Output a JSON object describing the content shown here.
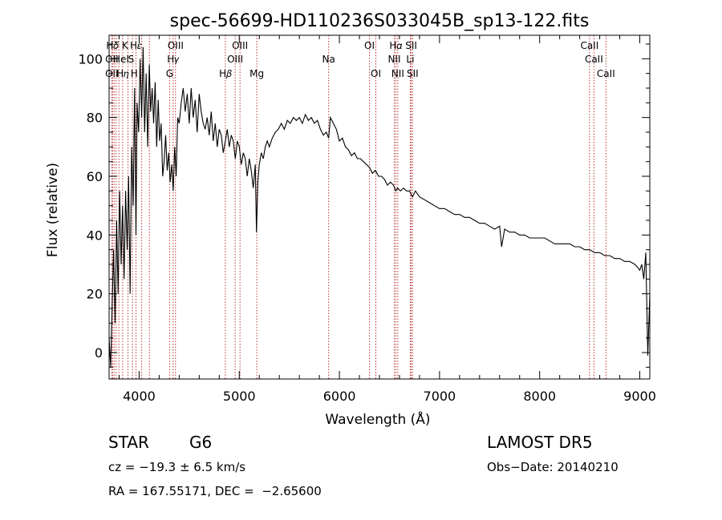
{
  "chart_data": {
    "type": "line",
    "title": "spec-56699-HD110236S033045B_sp13-122.fits",
    "xlabel": "Wavelength (Å)",
    "ylabel": "Flux (relative)",
    "xlim": [
      3700,
      9100
    ],
    "ylim": [
      -9,
      108
    ],
    "xticks": [
      "4000",
      "5000",
      "6000",
      "7000",
      "8000",
      "9000"
    ],
    "yticks": [
      "0",
      "20",
      "40",
      "60",
      "80",
      "100"
    ],
    "grid": false,
    "series": [
      {
        "x": [
          3700,
          3715,
          3730,
          3745,
          3760,
          3775,
          3790,
          3805,
          3820,
          3835,
          3850,
          3865,
          3880,
          3895,
          3910,
          3925,
          3940,
          3955,
          3968,
          3980,
          3995,
          4010,
          4025,
          4040,
          4055,
          4070,
          4085,
          4101,
          4115,
          4130,
          4145,
          4160,
          4175,
          4190,
          4205,
          4220,
          4235,
          4250,
          4265,
          4280,
          4295,
          4310,
          4325,
          4340,
          4355,
          4370,
          4385,
          4400,
          4420,
          4440,
          4460,
          4480,
          4500,
          4520,
          4540,
          4560,
          4580,
          4600,
          4620,
          4640,
          4660,
          4680,
          4700,
          4720,
          4740,
          4760,
          4780,
          4800,
          4820,
          4840,
          4861,
          4880,
          4900,
          4920,
          4940,
          4960,
          4980,
          5000,
          5020,
          5040,
          5060,
          5080,
          5100,
          5120,
          5140,
          5160,
          5172,
          5185,
          5200,
          5220,
          5240,
          5260,
          5280,
          5300,
          5330,
          5360,
          5390,
          5420,
          5450,
          5480,
          5510,
          5540,
          5570,
          5600,
          5630,
          5660,
          5690,
          5720,
          5750,
          5780,
          5810,
          5840,
          5870,
          5893,
          5910,
          5940,
          5970,
          6000,
          6030,
          6060,
          6090,
          6120,
          6150,
          6180,
          6210,
          6240,
          6270,
          6300,
          6330,
          6360,
          6390,
          6420,
          6450,
          6480,
          6510,
          6540,
          6563,
          6580,
          6610,
          6640,
          6670,
          6700,
          6730,
          6760,
          6800,
          6850,
          6900,
          6950,
          7000,
          7050,
          7100,
          7150,
          7200,
          7250,
          7300,
          7350,
          7400,
          7450,
          7500,
          7550,
          7600,
          7620,
          7650,
          7700,
          7750,
          7800,
          7850,
          7900,
          7950,
          8000,
          8050,
          8100,
          8150,
          8200,
          8250,
          8300,
          8350,
          8400,
          8450,
          8500,
          8550,
          8600,
          8650,
          8700,
          8750,
          8800,
          8850,
          8900,
          8950,
          8980,
          9000,
          9020,
          9040,
          9060,
          9080,
          9100
        ],
        "y": [
          5,
          -5,
          15,
          35,
          10,
          45,
          20,
          55,
          30,
          50,
          25,
          55,
          35,
          60,
          20,
          70,
          50,
          90,
          40,
          85,
          75,
          100,
          80,
          104,
          75,
          95,
          70,
          98,
          82,
          90,
          78,
          92,
          70,
          86,
          72,
          78,
          60,
          65,
          74,
          62,
          68,
          58,
          64,
          55,
          70,
          60,
          80,
          78,
          85,
          90,
          82,
          88,
          78,
          90,
          80,
          86,
          75,
          88,
          82,
          78,
          76,
          80,
          74,
          82,
          72,
          78,
          70,
          76,
          74,
          68,
          72,
          76,
          70,
          74,
          72,
          66,
          72,
          70,
          64,
          68,
          66,
          60,
          66,
          62,
          56,
          64,
          41,
          58,
          64,
          68,
          66,
          70,
          72,
          70,
          73,
          75,
          76,
          78,
          76,
          79,
          78,
          80,
          79,
          80,
          78,
          81,
          79,
          80,
          78,
          79,
          76,
          74,
          75,
          73,
          80,
          78,
          76,
          72,
          73,
          70,
          69,
          67,
          68,
          66,
          66,
          65,
          64,
          63,
          61,
          62,
          60,
          60,
          59,
          57,
          58,
          57,
          55,
          56,
          55,
          56,
          55,
          55,
          53,
          55,
          53,
          52,
          51,
          50,
          49,
          49,
          48,
          47,
          47,
          46,
          46,
          45,
          44,
          44,
          43,
          42,
          43,
          36,
          42,
          41,
          41,
          40,
          40,
          39,
          39,
          39,
          39,
          38,
          37,
          37,
          37,
          37,
          36,
          36,
          35,
          35,
          34,
          34,
          33,
          33,
          32,
          32,
          31,
          31,
          30,
          29,
          28,
          30,
          25,
          34,
          -1,
          20
        ]
      }
    ],
    "annotations": [
      {
        "label": "H𝛿",
        "row": 1,
        "x": 3734
      },
      {
        "label": "K",
        "row": 1,
        "x": 3860
      },
      {
        "label": "H𝜀",
        "row": 1,
        "x": 3968
      },
      {
        "label": "OIII",
        "row": 1,
        "x": 4364
      },
      {
        "label": "OIII",
        "row": 1,
        "x": 5007
      },
      {
        "label": "OI",
        "row": 1,
        "x": 6300
      },
      {
        "label": "H𝛼",
        "row": 1,
        "x": 6563
      },
      {
        "label": "SII",
        "row": 1,
        "x": 6717
      },
      {
        "label": "CaII",
        "row": 1,
        "x": 8498
      },
      {
        "label": "OII",
        "row": 2,
        "x": 3727
      },
      {
        "label": "HeI",
        "row": 2,
        "x": 3820
      },
      {
        "label": "S",
        "row": 2,
        "x": 3920
      },
      {
        "label": "H𝛾",
        "row": 2,
        "x": 4340
      },
      {
        "label": "OIII",
        "row": 2,
        "x": 4959
      },
      {
        "label": "Na",
        "row": 2,
        "x": 5893
      },
      {
        "label": "NII",
        "row": 2,
        "x": 6548
      },
      {
        "label": "Li",
        "row": 2,
        "x": 6708
      },
      {
        "label": "CaII",
        "row": 2,
        "x": 8542
      },
      {
        "label": "OII",
        "row": 3,
        "x": 3727
      },
      {
        "label": "H𝜂",
        "row": 3,
        "x": 3835
      },
      {
        "label": "H",
        "row": 3,
        "x": 3950
      },
      {
        "label": "G",
        "row": 3,
        "x": 4304
      },
      {
        "label": "H𝛽",
        "row": 3,
        "x": 4861
      },
      {
        "label": "Mg",
        "row": 3,
        "x": 5175
      },
      {
        "label": "OI",
        "row": 3,
        "x": 6364
      },
      {
        "label": "NII",
        "row": 3,
        "x": 6583
      },
      {
        "label": "SII",
        "row": 3,
        "x": 6731
      },
      {
        "label": "CaII",
        "row": 3,
        "x": 8662
      }
    ],
    "marker_lines": [
      3727,
      3734,
      3750,
      3770,
      3798,
      3835,
      3889,
      3934,
      3968,
      4026,
      4102,
      4304,
      4340,
      4363,
      4861,
      4959,
      5007,
      5175,
      5893,
      6300,
      6364,
      6548,
      6563,
      6583,
      6708,
      6717,
      6731,
      8498,
      8542,
      8662
    ]
  },
  "info": {
    "object_class": "STAR",
    "subclass": "G6",
    "survey": "LAMOST DR5",
    "cz_text": "cz = −19.3 ± 6.5 km/s",
    "obs_date": "Obs−Date: 20140210",
    "radec": "RA = 167.55171, DEC =  −2.65600"
  },
  "colors": {
    "spectrum": "#000000",
    "marker_lines": "#b22222",
    "axes": "#000000"
  }
}
